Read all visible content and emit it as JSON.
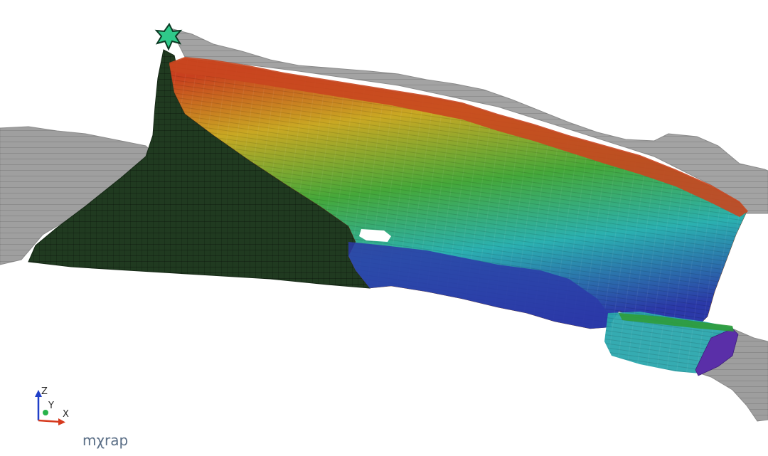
{
  "viewer": {
    "logo_text": "mχrap",
    "axes": {
      "x_label": "X",
      "y_label": "Y",
      "z_label": "Z",
      "x_color": "#d63a1e",
      "y_color": "#27b34a",
      "z_color": "#1f3fc8"
    }
  },
  "scene": {
    "background_color": "#ffffff",
    "host_rock_color": "#9c9c9c",
    "depleted_zone_color": "#1f3a1f",
    "start_marker_color": "#2fc98a",
    "gradient_colors": [
      "#c8401e",
      "#c9a823",
      "#3fa33a",
      "#2bb0b0",
      "#2b39a8",
      "#5a2fa8"
    ]
  }
}
